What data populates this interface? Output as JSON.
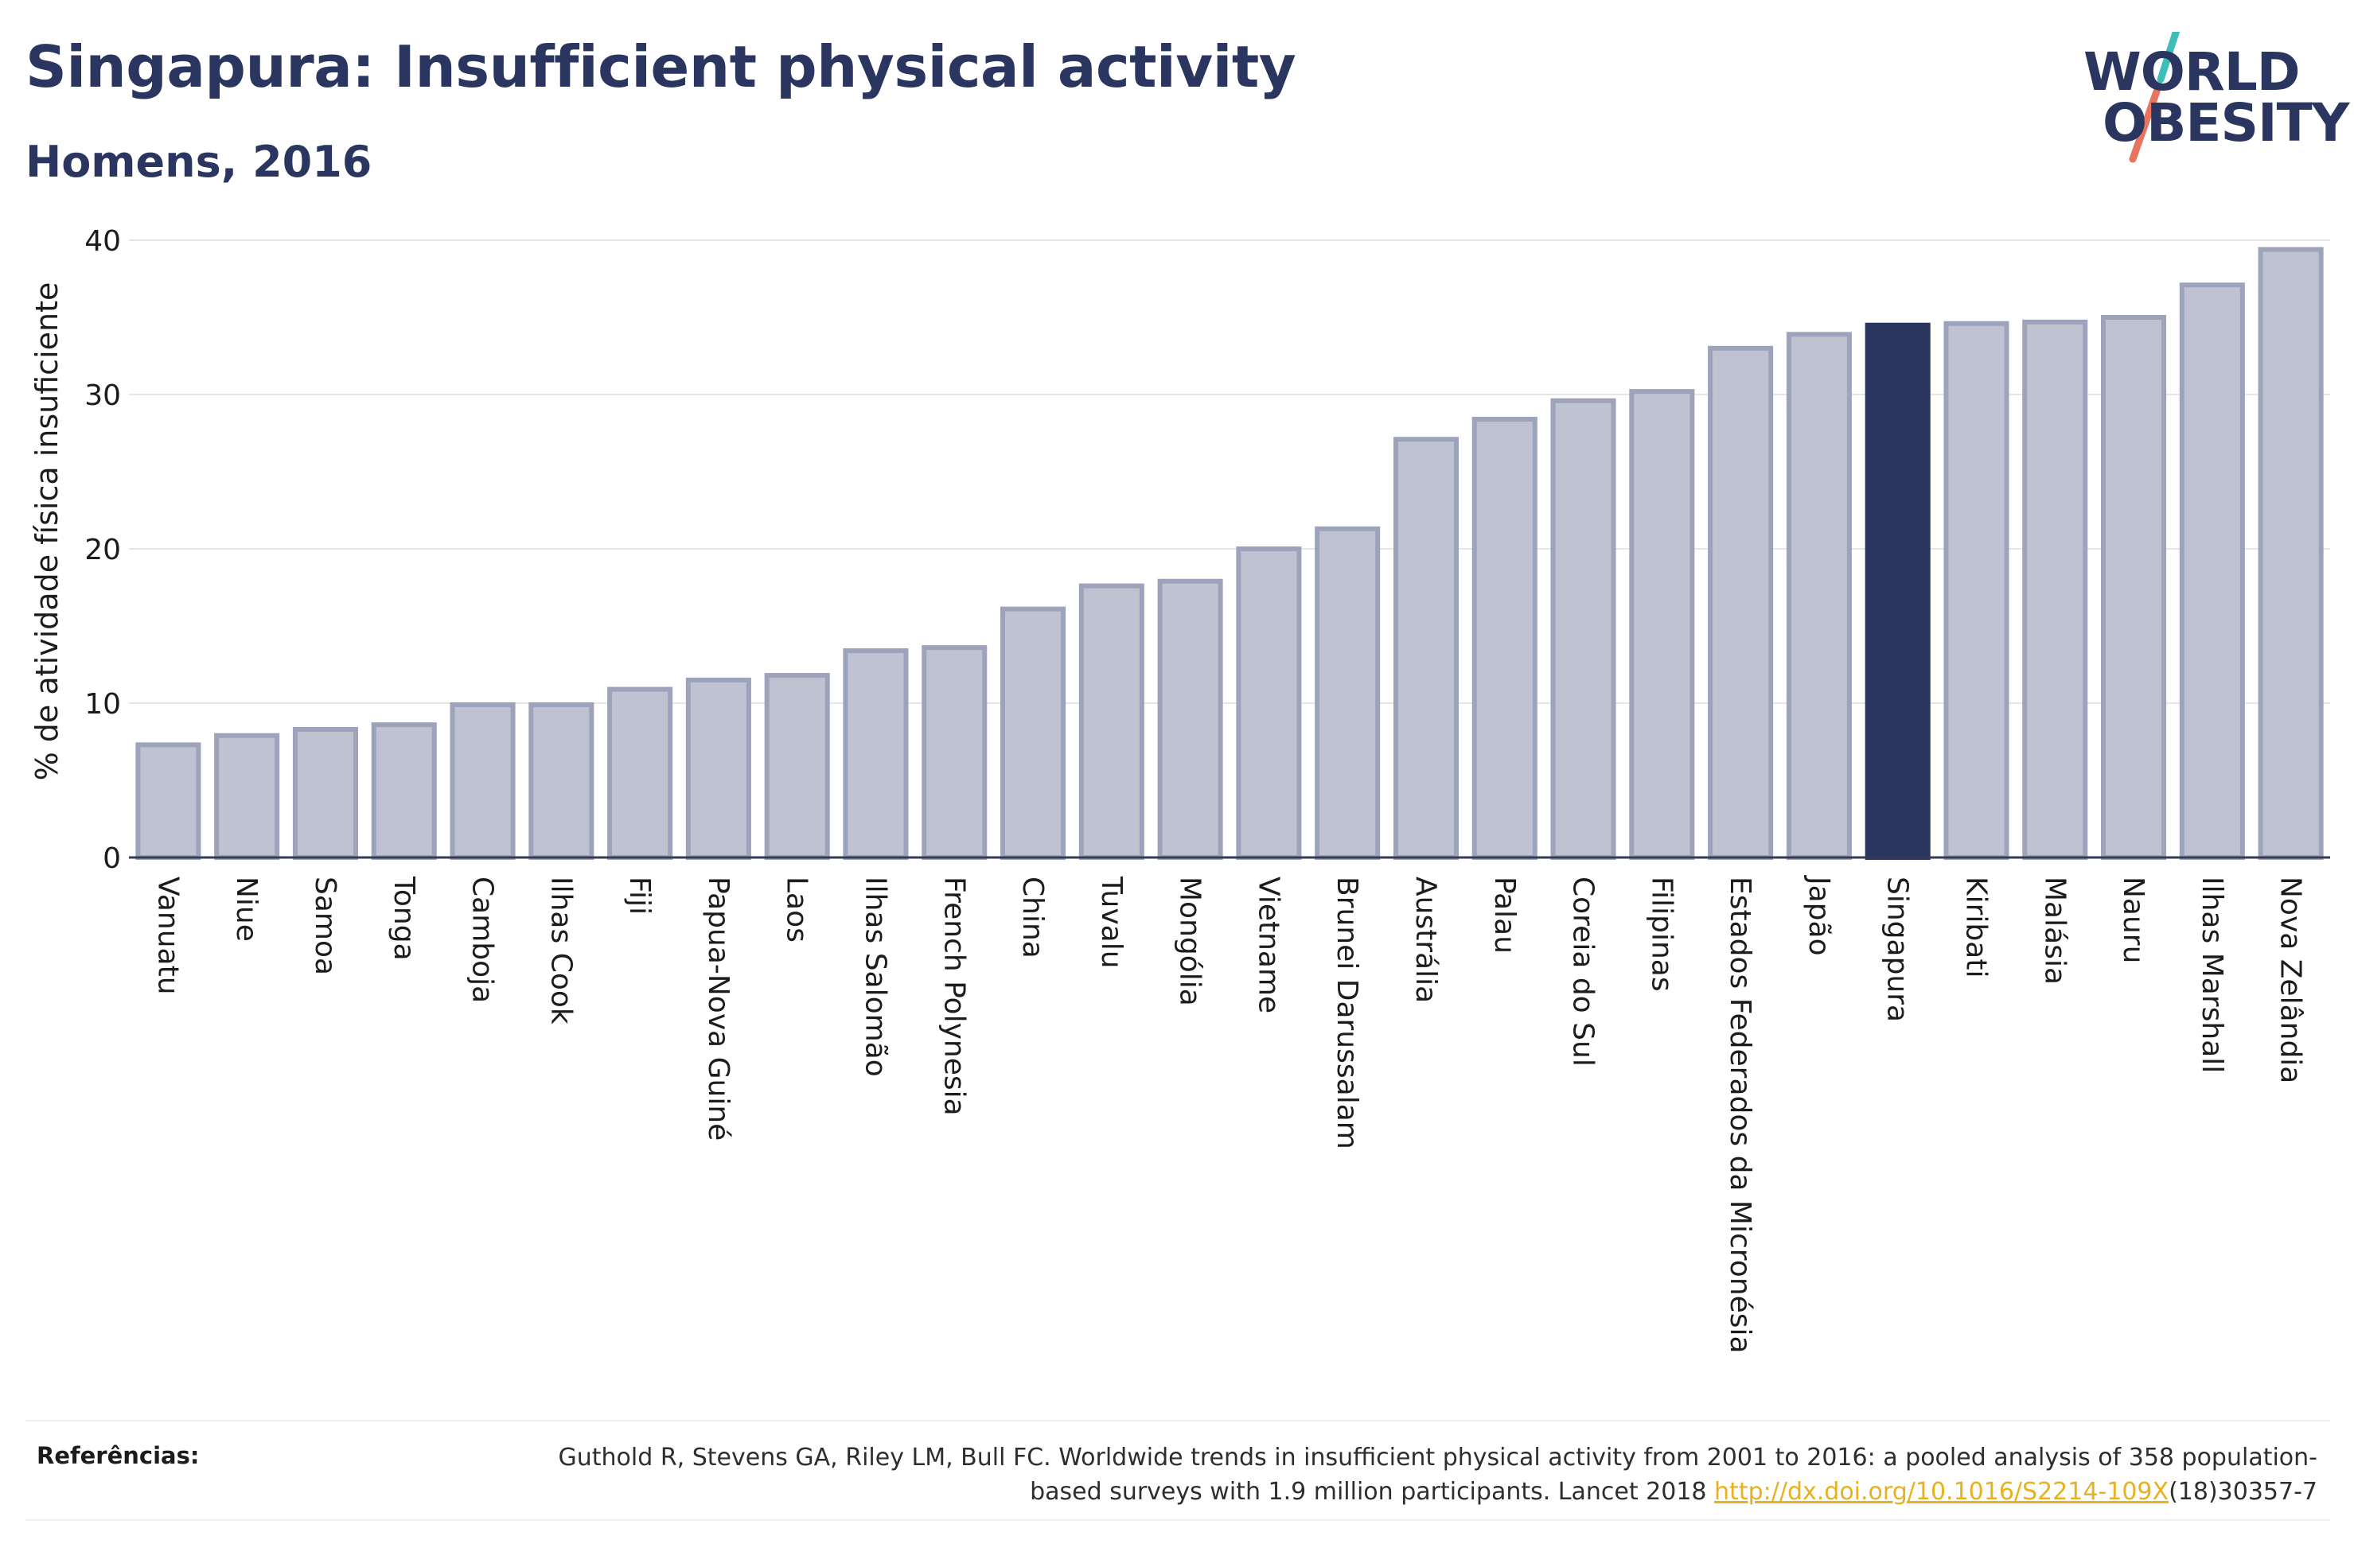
{
  "header": {
    "title": "Singapura: Insufficient physical activity",
    "subtitle": "Homens, 2016"
  },
  "logo": {
    "line1": "WORLD",
    "line2": "OBESITY",
    "colors": {
      "text": "#2b3660",
      "slash_top": "#3dbfb8",
      "slash_bottom": "#e8735f"
    }
  },
  "chart_data": {
    "type": "bar",
    "ylabel": "% de atividade física insuficiente",
    "ylim": [
      0,
      40
    ],
    "yticks": [
      0,
      10,
      20,
      30,
      40
    ],
    "grid": true,
    "highlight": "Singapura",
    "colors": {
      "bar": "#bfc2d0",
      "bar_border": "#9da3ba",
      "highlight": "#2b3660"
    },
    "categories": [
      "Vanuatu",
      "Niue",
      "Samoa",
      "Tonga",
      "Camboja",
      "Ilhas Cook",
      "Fiji",
      "Papua-Nova Guiné",
      "Laos",
      "Ilhas Salomão",
      "French Polynesia",
      "China",
      "Tuvalu",
      "Mongólia",
      "Vietname",
      "Brunei Darussalam",
      "Austrália",
      "Palau",
      "Coreia do Sul",
      "Filipinas",
      "Estados Federados da Micronésia",
      "Japão",
      "Singapura",
      "Kiribati",
      "Malásia",
      "Nauru",
      "Ilhas Marshall",
      "Nova Zelândia"
    ],
    "values": [
      7.3,
      7.9,
      8.3,
      8.6,
      9.9,
      9.9,
      10.9,
      11.5,
      11.8,
      13.4,
      13.6,
      16.1,
      17.6,
      17.9,
      20.0,
      21.3,
      27.1,
      28.4,
      29.6,
      30.2,
      33.0,
      33.9,
      34.5,
      34.6,
      34.7,
      35.0,
      37.1,
      39.4
    ]
  },
  "references": {
    "label": "Referências:",
    "text_before": "Guthold R, Stevens GA, Riley LM, Bull FC. Worldwide trends in insufficient physical activity from 2001 to 2016: a pooled analysis of 358 population-based surveys with 1.9 million participants. Lancet 2018 ",
    "link": "http://dx.doi.org/10.1016/S2214-109X",
    "text_after": "(18)30357-7"
  }
}
